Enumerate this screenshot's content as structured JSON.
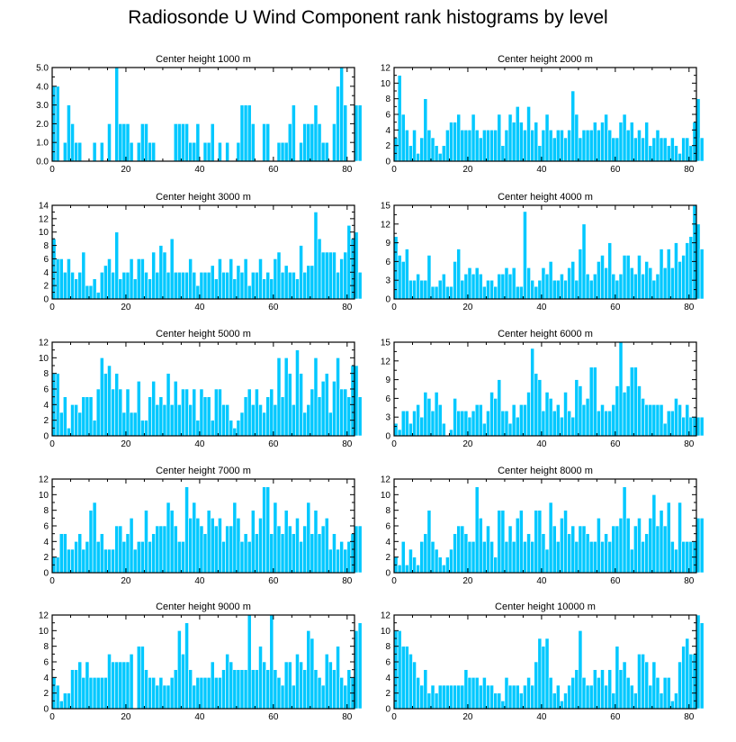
{
  "title": "Radiosonde U Wind Component rank histograms by level",
  "bar_color": "#00c8ff",
  "chart_data": [
    {
      "type": "bar",
      "title": "Center height 1000 m",
      "xlim": [
        0,
        82
      ],
      "ylim": [
        0,
        5
      ],
      "xticks": [
        0,
        20,
        40,
        60,
        80
      ],
      "yticks": [
        0,
        1,
        2,
        3,
        4,
        5
      ],
      "ytick_labels": [
        "0.0",
        "1.0",
        "2.0",
        "3.0",
        "4.0",
        "5.0"
      ],
      "values": [
        4,
        4,
        0,
        1,
        3,
        2,
        1,
        1,
        0,
        0,
        0,
        1,
        0,
        1,
        0,
        2,
        0,
        5,
        2,
        2,
        2,
        1,
        0,
        1,
        2,
        2,
        1,
        1,
        0,
        0,
        0,
        0,
        0,
        2,
        2,
        2,
        2,
        1,
        1,
        2,
        0,
        1,
        1,
        2,
        0,
        1,
        0,
        1,
        0,
        0,
        1,
        3,
        3,
        3,
        2,
        0,
        0,
        2,
        2,
        0,
        0,
        1,
        1,
        1,
        2,
        3,
        0,
        1,
        2,
        2,
        2,
        3,
        2,
        1,
        1,
        0,
        2,
        4,
        5,
        3,
        0,
        0,
        3,
        3
      ]
    },
    {
      "type": "bar",
      "title": "Center height 2000 m",
      "xlim": [
        0,
        82
      ],
      "ylim": [
        0,
        12
      ],
      "xticks": [
        0,
        20,
        40,
        60,
        80
      ],
      "yticks": [
        0,
        2,
        4,
        6,
        8,
        10,
        12
      ],
      "values": [
        3,
        11,
        6,
        4,
        2,
        4,
        1,
        3,
        8,
        4,
        3,
        2,
        1,
        2,
        4,
        5,
        5,
        6,
        4,
        4,
        4,
        6,
        4,
        3,
        4,
        4,
        4,
        4,
        6,
        2,
        4,
        6,
        5,
        7,
        5,
        4,
        7,
        4,
        5,
        2,
        4,
        6,
        4,
        3,
        4,
        4,
        3,
        4,
        9,
        6,
        3,
        4,
        4,
        4,
        5,
        4,
        5,
        6,
        4,
        3,
        3,
        5,
        6,
        4,
        5,
        3,
        4,
        3,
        5,
        2,
        3,
        4,
        3,
        3,
        2,
        3,
        2,
        1,
        3,
        3,
        2,
        5,
        8,
        3
      ]
    },
    {
      "type": "bar",
      "title": "Center height 3000 m",
      "xlim": [
        0,
        82
      ],
      "ylim": [
        0,
        14
      ],
      "xticks": [
        0,
        20,
        40,
        60,
        80
      ],
      "yticks": [
        0,
        2,
        4,
        6,
        8,
        10,
        12,
        14
      ],
      "values": [
        9,
        6,
        6,
        4,
        6,
        4,
        3,
        4,
        7,
        2,
        2,
        3,
        1,
        4,
        5,
        6,
        4,
        10,
        3,
        4,
        4,
        6,
        3,
        6,
        6,
        4,
        3,
        7,
        4,
        8,
        7,
        4,
        9,
        4,
        4,
        4,
        4,
        6,
        4,
        2,
        4,
        4,
        4,
        5,
        3,
        6,
        4,
        4,
        6,
        3,
        5,
        4,
        6,
        2,
        4,
        4,
        6,
        3,
        4,
        3,
        6,
        7,
        4,
        5,
        4,
        4,
        3,
        8,
        4,
        5,
        5,
        13,
        9,
        7,
        7,
        7,
        7,
        4,
        6,
        7,
        11,
        9,
        10,
        4
      ]
    },
    {
      "type": "bar",
      "title": "Center height 4000 m",
      "xlim": [
        0,
        82
      ],
      "ylim": [
        0,
        15
      ],
      "xticks": [
        0,
        20,
        40,
        60,
        80
      ],
      "yticks": [
        0,
        3,
        6,
        9,
        12,
        15
      ],
      "values": [
        10,
        7,
        6,
        8,
        3,
        3,
        4,
        3,
        3,
        7,
        2,
        2,
        3,
        4,
        2,
        2,
        6,
        8,
        3,
        4,
        5,
        4,
        5,
        4,
        2,
        3,
        3,
        2,
        4,
        4,
        5,
        4,
        5,
        2,
        2,
        14,
        5,
        3,
        2,
        3,
        5,
        4,
        6,
        3,
        3,
        4,
        3,
        5,
        6,
        3,
        8,
        12,
        4,
        3,
        4,
        6,
        7,
        5,
        9,
        4,
        3,
        4,
        7,
        7,
        5,
        4,
        7,
        4,
        6,
        5,
        3,
        4,
        8,
        5,
        8,
        5,
        9,
        6,
        7,
        9,
        10,
        15,
        12,
        8
      ]
    },
    {
      "type": "bar",
      "title": "Center height 5000 m",
      "xlim": [
        0,
        82
      ],
      "ylim": [
        0,
        12
      ],
      "xticks": [
        0,
        20,
        40,
        60,
        80
      ],
      "yticks": [
        0,
        2,
        4,
        6,
        8,
        10,
        12
      ],
      "values": [
        8,
        8,
        3,
        5,
        1,
        4,
        4,
        3,
        5,
        5,
        5,
        2,
        6,
        10,
        8,
        9,
        6,
        8,
        6,
        3,
        6,
        3,
        3,
        7,
        2,
        2,
        5,
        7,
        4,
        5,
        4,
        8,
        4,
        7,
        4,
        6,
        6,
        4,
        6,
        2,
        6,
        5,
        5,
        2,
        6,
        6,
        4,
        4,
        2,
        1,
        2,
        3,
        5,
        6,
        4,
        6,
        4,
        3,
        5,
        6,
        4,
        10,
        5,
        10,
        8,
        4,
        11,
        8,
        3,
        4,
        6,
        10,
        5,
        7,
        8,
        3,
        7,
        10,
        6,
        6,
        5,
        9,
        9,
        5
      ]
    },
    {
      "type": "bar",
      "title": "Center height 6000 m",
      "xlim": [
        0,
        82
      ],
      "ylim": [
        0,
        15
      ],
      "xticks": [
        0,
        20,
        40,
        60,
        80
      ],
      "yticks": [
        0,
        3,
        6,
        9,
        12,
        15
      ],
      "values": [
        2,
        1,
        4,
        4,
        2,
        4,
        5,
        3,
        7,
        6,
        4,
        7,
        5,
        2,
        0,
        1,
        6,
        4,
        4,
        4,
        3,
        4,
        5,
        5,
        2,
        4,
        7,
        6,
        9,
        4,
        4,
        2,
        5,
        3,
        5,
        5,
        7,
        14,
        10,
        9,
        4,
        7,
        6,
        4,
        5,
        3,
        7,
        4,
        3,
        9,
        8,
        5,
        6,
        11,
        11,
        4,
        5,
        4,
        4,
        5,
        8,
        15,
        7,
        8,
        11,
        11,
        8,
        6,
        5,
        5,
        5,
        5,
        5,
        2,
        4,
        4,
        6,
        5,
        3,
        5,
        3,
        3,
        3,
        3
      ]
    },
    {
      "type": "bar",
      "title": "Center height 7000 m",
      "xlim": [
        0,
        82
      ],
      "ylim": [
        0,
        12
      ],
      "xticks": [
        0,
        20,
        40,
        60,
        80
      ],
      "yticks": [
        0,
        2,
        4,
        6,
        8,
        10,
        12
      ],
      "values": [
        2,
        2,
        5,
        5,
        3,
        3,
        4,
        5,
        3,
        4,
        8,
        9,
        4,
        5,
        3,
        3,
        3,
        6,
        6,
        4,
        5,
        7,
        3,
        4,
        4,
        8,
        4,
        5,
        6,
        6,
        6,
        9,
        8,
        6,
        4,
        4,
        11,
        7,
        9,
        7,
        6,
        5,
        8,
        7,
        6,
        7,
        4,
        6,
        6,
        9,
        7,
        4,
        5,
        4,
        8,
        5,
        7,
        11,
        11,
        5,
        9,
        6,
        5,
        8,
        6,
        5,
        7,
        4,
        6,
        9,
        5,
        8,
        5,
        6,
        7,
        3,
        5,
        3,
        4,
        3,
        4,
        5,
        6,
        6
      ]
    },
    {
      "type": "bar",
      "title": "Center height 8000 m",
      "xlim": [
        0,
        82
      ],
      "ylim": [
        0,
        12
      ],
      "xticks": [
        0,
        20,
        40,
        60,
        80
      ],
      "yticks": [
        0,
        2,
        4,
        6,
        8,
        10,
        12
      ],
      "values": [
        2,
        1,
        4,
        1,
        3,
        2,
        1,
        4,
        5,
        8,
        4,
        3,
        2,
        1,
        2,
        3,
        5,
        6,
        6,
        5,
        4,
        4,
        11,
        7,
        4,
        6,
        4,
        2,
        8,
        8,
        4,
        6,
        4,
        7,
        8,
        4,
        5,
        4,
        8,
        8,
        5,
        3,
        9,
        6,
        4,
        7,
        8,
        5,
        6,
        4,
        6,
        6,
        5,
        4,
        4,
        7,
        4,
        5,
        4,
        6,
        6,
        7,
        11,
        7,
        3,
        6,
        7,
        4,
        5,
        7,
        10,
        6,
        8,
        6,
        9,
        4,
        3,
        9,
        4,
        4,
        4,
        4,
        7,
        7
      ]
    },
    {
      "type": "bar",
      "title": "Center height 9000 m",
      "xlim": [
        0,
        82
      ],
      "ylim": [
        0,
        12
      ],
      "xticks": [
        0,
        20,
        40,
        60,
        80
      ],
      "yticks": [
        0,
        2,
        4,
        6,
        8,
        10,
        12
      ],
      "values": [
        4,
        3,
        1,
        2,
        2,
        5,
        5,
        6,
        4,
        6,
        4,
        4,
        4,
        4,
        4,
        7,
        6,
        6,
        6,
        6,
        6,
        7,
        0,
        8,
        8,
        5,
        4,
        4,
        3,
        4,
        3,
        3,
        4,
        5,
        10,
        7,
        11,
        5,
        3,
        4,
        4,
        4,
        4,
        6,
        4,
        4,
        5,
        7,
        6,
        5,
        5,
        5,
        5,
        12,
        5,
        5,
        8,
        6,
        5,
        12,
        5,
        4,
        3,
        6,
        6,
        3,
        7,
        6,
        5,
        10,
        9,
        5,
        4,
        3,
        7,
        6,
        5,
        8,
        4,
        3,
        5,
        4,
        10,
        11
      ]
    },
    {
      "type": "bar",
      "title": "Center height 10000 m",
      "xlim": [
        0,
        82
      ],
      "ylim": [
        0,
        12
      ],
      "xticks": [
        0,
        20,
        40,
        60,
        80
      ],
      "yticks": [
        0,
        2,
        4,
        6,
        8,
        10,
        12
      ],
      "values": [
        10,
        10,
        8,
        8,
        7,
        6,
        4,
        3,
        5,
        2,
        3,
        2,
        3,
        3,
        3,
        3,
        3,
        3,
        3,
        5,
        4,
        4,
        4,
        3,
        4,
        3,
        3,
        2,
        2,
        1,
        4,
        3,
        3,
        3,
        2,
        3,
        4,
        3,
        6,
        9,
        8,
        9,
        4,
        2,
        3,
        1,
        2,
        3,
        4,
        5,
        10,
        4,
        3,
        3,
        5,
        4,
        5,
        3,
        5,
        2,
        8,
        5,
        6,
        4,
        3,
        2,
        7,
        7,
        6,
        3,
        6,
        4,
        2,
        4,
        4,
        1,
        2,
        6,
        8,
        9,
        7,
        7,
        12,
        11
      ]
    }
  ]
}
